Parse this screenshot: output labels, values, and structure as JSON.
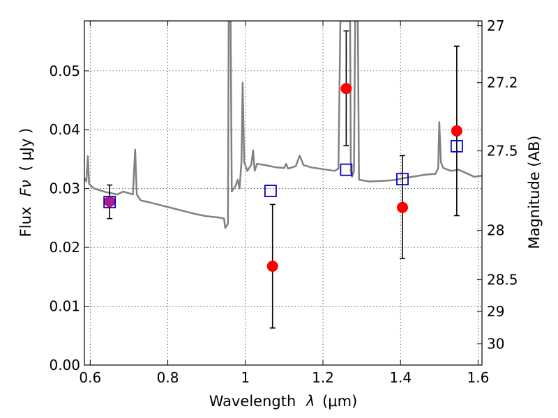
{
  "chart_data": {
    "type": "scatter",
    "xlabel_text": "Wavelength",
    "xlabel_symbol": "λ",
    "xlabel_unit": "(μm)",
    "ylabel_text": "Flux",
    "ylabel_symbol": "Fν",
    "ylabel_unit": "( μJy )",
    "y2label": "Magnitude (AB)",
    "xlim": [
      0.585,
      1.61
    ],
    "ylim": [
      0.0,
      0.0585
    ],
    "xticks": [
      0.6,
      0.8,
      1.0,
      1.2,
      1.4,
      1.6
    ],
    "xtick_labels": [
      "0.6",
      "0.8",
      "1",
      "1.2",
      "1.4",
      "1.6"
    ],
    "yticks": [
      0.0,
      0.01,
      0.02,
      0.03,
      0.04,
      0.05
    ],
    "ytick_labels": [
      "0.00",
      "0.01",
      "0.02",
      "0.03",
      "0.04",
      "0.05"
    ],
    "y2ticks": [
      {
        "label": "27",
        "flux": 0.0577
      },
      {
        "label": "27.2",
        "flux": 0.048
      },
      {
        "label": "27.5",
        "flux": 0.0364
      },
      {
        "label": "28",
        "flux": 0.0229
      },
      {
        "label": "28.5",
        "flux": 0.0145
      },
      {
        "label": "29",
        "flux": 0.0091
      },
      {
        "label": "30",
        "flux": 0.0036
      }
    ],
    "grid": true,
    "series": [
      {
        "kind": "model-spectrum",
        "color": "#808080",
        "points": [
          [
            0.585,
            0.0318
          ],
          [
            0.59,
            0.0312
          ],
          [
            0.594,
            0.0355
          ],
          [
            0.597,
            0.0308
          ],
          [
            0.61,
            0.03
          ],
          [
            0.625,
            0.0297
          ],
          [
            0.64,
            0.0294
          ],
          [
            0.655,
            0.0292
          ],
          [
            0.67,
            0.029
          ],
          [
            0.685,
            0.0295
          ],
          [
            0.7,
            0.0292
          ],
          [
            0.71,
            0.029
          ],
          [
            0.716,
            0.0366
          ],
          [
            0.72,
            0.029
          ],
          [
            0.73,
            0.028
          ],
          [
            0.75,
            0.0277
          ],
          [
            0.78,
            0.0272
          ],
          [
            0.81,
            0.0267
          ],
          [
            0.84,
            0.0262
          ],
          [
            0.87,
            0.0257
          ],
          [
            0.9,
            0.0253
          ],
          [
            0.93,
            0.0251
          ],
          [
            0.945,
            0.0249
          ],
          [
            0.948,
            0.0233
          ],
          [
            0.955,
            0.024
          ],
          [
            0.957,
            0.0585
          ],
          [
            0.962,
            0.0585
          ],
          [
            0.965,
            0.0295
          ],
          [
            0.975,
            0.0305
          ],
          [
            0.98,
            0.0315
          ],
          [
            0.985,
            0.03
          ],
          [
            0.99,
            0.0345
          ],
          [
            0.993,
            0.048
          ],
          [
            0.997,
            0.0345
          ],
          [
            1.005,
            0.033
          ],
          [
            1.015,
            0.034
          ],
          [
            1.02,
            0.0365
          ],
          [
            1.024,
            0.033
          ],
          [
            1.03,
            0.0342
          ],
          [
            1.05,
            0.034
          ],
          [
            1.08,
            0.0336
          ],
          [
            1.1,
            0.0335
          ],
          [
            1.105,
            0.0342
          ],
          [
            1.11,
            0.0334
          ],
          [
            1.13,
            0.0338
          ],
          [
            1.14,
            0.0356
          ],
          [
            1.15,
            0.034
          ],
          [
            1.17,
            0.0336
          ],
          [
            1.2,
            0.0333
          ],
          [
            1.23,
            0.033
          ],
          [
            1.24,
            0.0334
          ],
          [
            1.245,
            0.0585
          ],
          [
            1.25,
            0.0585
          ],
          [
            1.27,
            0.0585
          ],
          [
            1.272,
            0.033
          ],
          [
            1.275,
            0.032
          ],
          [
            1.28,
            0.033
          ],
          [
            1.283,
            0.0585
          ],
          [
            1.29,
            0.0585
          ],
          [
            1.293,
            0.0315
          ],
          [
            1.32,
            0.0312
          ],
          [
            1.35,
            0.0313
          ],
          [
            1.38,
            0.0314
          ],
          [
            1.41,
            0.0318
          ],
          [
            1.44,
            0.0321
          ],
          [
            1.47,
            0.0324
          ],
          [
            1.49,
            0.0325
          ],
          [
            1.497,
            0.0335
          ],
          [
            1.5,
            0.0413
          ],
          [
            1.504,
            0.0345
          ],
          [
            1.51,
            0.0335
          ],
          [
            1.53,
            0.033
          ],
          [
            1.55,
            0.0332
          ],
          [
            1.57,
            0.0326
          ],
          [
            1.59,
            0.032
          ],
          [
            1.61,
            0.0322
          ]
        ]
      },
      {
        "kind": "model-photometry",
        "color": "#0000cc",
        "marker": "open-square",
        "points": [
          [
            0.65,
            0.0277
          ],
          [
            1.065,
            0.0296
          ],
          [
            1.26,
            0.0332
          ],
          [
            1.405,
            0.0316
          ],
          [
            1.545,
            0.0372
          ]
        ]
      },
      {
        "kind": "observed",
        "color": "#ff0000",
        "marker": "filled-circle",
        "points": [
          {
            "x": 0.65,
            "y": 0.0278,
            "lo": 0.0249,
            "hi": 0.0306
          },
          {
            "x": 1.07,
            "y": 0.0168,
            "lo": 0.0063,
            "hi": 0.0273
          },
          {
            "x": 1.26,
            "y": 0.047,
            "lo": 0.0373,
            "hi": 0.0568
          },
          {
            "x": 1.405,
            "y": 0.0268,
            "lo": 0.0181,
            "hi": 0.0356
          },
          {
            "x": 1.545,
            "y": 0.0398,
            "lo": 0.0254,
            "hi": 0.0542
          }
        ]
      }
    ]
  }
}
